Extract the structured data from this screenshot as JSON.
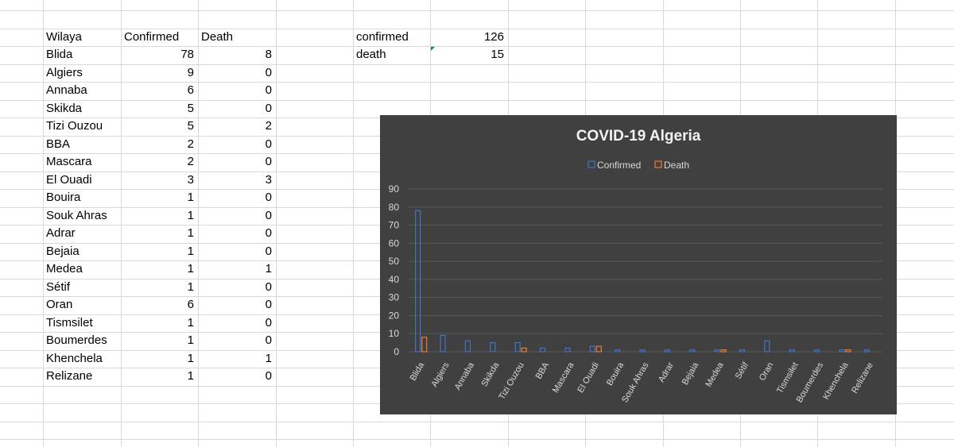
{
  "sheet": {
    "headers": [
      "Wilaya",
      "Confirmed",
      "Death"
    ],
    "rows": [
      [
        "Blida",
        78,
        8
      ],
      [
        "Algiers",
        9,
        0
      ],
      [
        "Annaba",
        6,
        0
      ],
      [
        "Skikda",
        5,
        0
      ],
      [
        "Tizi Ouzou",
        5,
        2
      ],
      [
        "BBA",
        2,
        0
      ],
      [
        "Mascara",
        2,
        0
      ],
      [
        "El Ouadi",
        3,
        3
      ],
      [
        "Bouira",
        1,
        0
      ],
      [
        "Souk Ahras",
        1,
        0
      ],
      [
        "Adrar",
        1,
        0
      ],
      [
        "Bejaia",
        1,
        0
      ],
      [
        "Medea",
        1,
        1
      ],
      [
        "Sétif",
        1,
        0
      ],
      [
        "Oran",
        6,
        0
      ],
      [
        "Tismsilet",
        1,
        0
      ],
      [
        "Boumerdes",
        1,
        0
      ],
      [
        "Khenchela",
        1,
        1
      ],
      [
        "Relizane",
        1,
        0
      ]
    ],
    "summary": [
      {
        "label": "confirmed",
        "value": 126
      },
      {
        "label": "death",
        "value": 15
      }
    ]
  },
  "chart_data": {
    "type": "bar",
    "title": "COVID-19 Algeria",
    "categories": [
      "Blida",
      "Algiers",
      "Annaba",
      "Skikda",
      "Tizi Ouzou",
      "BBA",
      "Mascara",
      "El Ouadi",
      "Bouira",
      "Souk Ahras",
      "Adrar",
      "Bejaia",
      "Medea",
      "Sétif",
      "Oran",
      "Tismsilet",
      "Boumerdes",
      "Khenchela",
      "Relizane"
    ],
    "series": [
      {
        "name": "Confirmed",
        "values": [
          78,
          9,
          6,
          5,
          5,
          2,
          2,
          3,
          1,
          1,
          1,
          1,
          1,
          1,
          6,
          1,
          1,
          1,
          1
        ],
        "color": "#4472c4"
      },
      {
        "name": "Death",
        "values": [
          8,
          0,
          0,
          0,
          2,
          0,
          0,
          3,
          0,
          0,
          0,
          0,
          1,
          0,
          0,
          0,
          0,
          1,
          0
        ],
        "color": "#ed7d31"
      }
    ],
    "ylim": [
      0,
      90
    ],
    "yticks": [
      0,
      10,
      20,
      30,
      40,
      50,
      60,
      70,
      80,
      90
    ],
    "legend": "top",
    "grid": true,
    "background": "#404040"
  }
}
